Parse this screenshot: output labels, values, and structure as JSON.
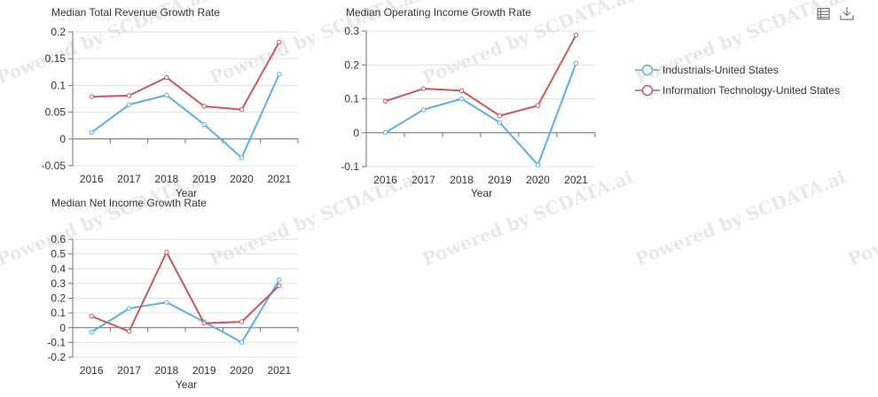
{
  "watermark": "Powered by SCDATA.ai",
  "toolbar": {
    "data_view_icon": "table-icon",
    "download_icon": "download-icon"
  },
  "legend": [
    {
      "name": "Industrials-United States",
      "color": "#5aaef0"
    },
    {
      "name": "Information Technology-United States",
      "color": "#c9585a"
    }
  ],
  "chart_data": [
    {
      "type": "line",
      "title": "Median Total Revenue Growth Rate",
      "xlabel": "Year",
      "ylabel": "",
      "categories": [
        "2016",
        "2017",
        "2018",
        "2019",
        "2020",
        "2021"
      ],
      "ylim": [
        -0.05,
        0.2
      ],
      "yticks": [
        0.2,
        0.15,
        0.1,
        0.05,
        0,
        -0.05
      ],
      "series": [
        {
          "name": "Industrials-United States",
          "values": [
            0.012,
            0.064,
            0.082,
            0.027,
            -0.035,
            0.121
          ]
        },
        {
          "name": "Information Technology-United States",
          "values": [
            0.079,
            0.081,
            0.115,
            0.061,
            0.055,
            0.181
          ]
        }
      ]
    },
    {
      "type": "line",
      "title": "Median Operating Income Growth Rate",
      "xlabel": "Year",
      "ylabel": "",
      "categories": [
        "2016",
        "2017",
        "2018",
        "2019",
        "2020",
        "2021"
      ],
      "ylim": [
        -0.1,
        0.3
      ],
      "yticks": [
        0.3,
        0.2,
        0.1,
        0,
        -0.1
      ],
      "series": [
        {
          "name": "Industrials-United States",
          "values": [
            0.0,
            0.068,
            0.1,
            0.03,
            -0.095,
            0.205
          ]
        },
        {
          "name": "Information Technology-United States",
          "values": [
            0.093,
            0.13,
            0.124,
            0.05,
            0.08,
            0.288
          ]
        }
      ]
    },
    {
      "type": "line",
      "title": "Median Net Income Growth Rate",
      "xlabel": "Year",
      "ylabel": "",
      "categories": [
        "2016",
        "2017",
        "2018",
        "2019",
        "2020",
        "2021"
      ],
      "ylim": [
        -0.2,
        0.6
      ],
      "yticks": [
        0.6,
        0.5,
        0.4,
        0.3,
        0.2,
        0.1,
        0,
        -0.1,
        -0.2
      ],
      "series": [
        {
          "name": "Industrials-United States",
          "values": [
            -0.03,
            0.13,
            0.172,
            0.04,
            -0.1,
            0.325
          ]
        },
        {
          "name": "Information Technology-United States",
          "values": [
            0.078,
            -0.025,
            0.512,
            0.03,
            0.04,
            0.285
          ]
        }
      ]
    }
  ]
}
